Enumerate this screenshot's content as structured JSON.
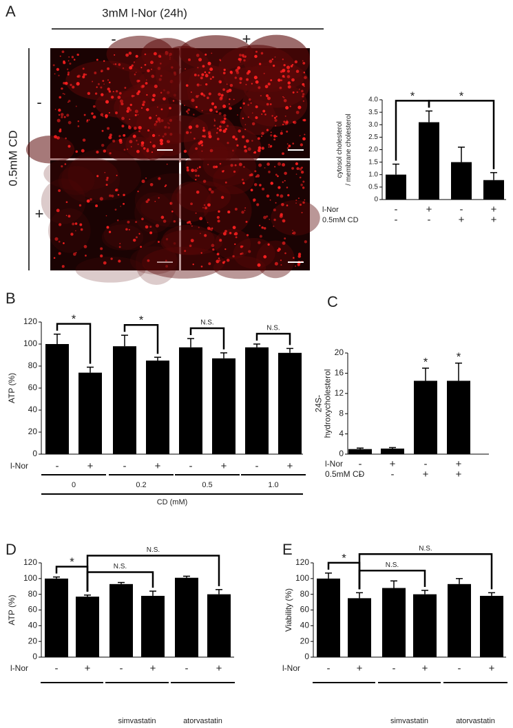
{
  "figure": {
    "header": "3mM l-Nor (24h)",
    "column_signs": [
      "-",
      "+"
    ],
    "row_label": "0.5mM CD",
    "row_signs": [
      "-",
      "+"
    ]
  },
  "chart_data": [
    {
      "type": "bar",
      "panel": "A",
      "ylabel": [
        "cytosol cholesterol",
        "/ membrane cholesterol"
      ],
      "values": [
        1.0,
        3.1,
        1.5,
        0.78
      ],
      "errors": [
        0.42,
        0.45,
        0.6,
        0.3
      ],
      "color": "#000000",
      "ylim": [
        0,
        4
      ],
      "yticks": [
        0,
        0.5,
        {
          "value": 1,
          "label": "1.0"
        },
        1.5,
        {
          "value": 2,
          "label": "2.0"
        },
        2.5,
        {
          "value": 3,
          "label": "3.0"
        },
        3.5,
        {
          "value": 4,
          "label": "4.0"
        }
      ],
      "conditions": [
        {
          "name": "l-Nor",
          "values": [
            "-",
            "+",
            "-",
            "+"
          ]
        },
        {
          "name": "0.5mM CD",
          "values": [
            "-",
            "-",
            "+",
            "+"
          ]
        }
      ],
      "annotations": [
        {
          "text": "*",
          "between": [
            0,
            1
          ]
        },
        {
          "text": "*",
          "between": [
            1,
            3
          ]
        }
      ]
    },
    {
      "type": "bar",
      "panel": "B",
      "ylabel": [
        "ATP (%)"
      ],
      "values": [
        100,
        74,
        98,
        85,
        97,
        87,
        97,
        92
      ],
      "errors": [
        9,
        5,
        10,
        3,
        8,
        5,
        3,
        4
      ],
      "color": "#000000",
      "ylim": [
        0,
        120
      ],
      "yticks": [
        0,
        20,
        40,
        60,
        80,
        100,
        120
      ],
      "conditions": [
        {
          "name": "l-Nor",
          "values": [
            "-",
            "+",
            "-",
            "+",
            "-",
            "+",
            "-",
            "+"
          ]
        }
      ],
      "groups": [
        "0",
        "0.2",
        "0.5",
        "1.0"
      ],
      "xlabel": "CD (mM)",
      "annotations": [
        {
          "text": "*",
          "between": [
            0,
            1
          ]
        },
        {
          "text": "*",
          "between": [
            2,
            3
          ]
        },
        {
          "text": "N.S.",
          "between": [
            4,
            5
          ]
        },
        {
          "text": "N.S.",
          "between": [
            6,
            7
          ]
        }
      ]
    },
    {
      "type": "bar",
      "panel": "C",
      "ylabel": [
        "24S-",
        "hydroxycholesterol"
      ],
      "values": [
        1.0,
        1.1,
        14.5,
        14.5
      ],
      "errors": [
        0.2,
        0.2,
        2.5,
        3.5
      ],
      "color": "#000000",
      "ylim": [
        0,
        20
      ],
      "yticks": [
        0,
        4,
        8,
        12,
        16,
        20
      ],
      "conditions": [
        {
          "name": "l-Nor",
          "values": [
            "-",
            "+",
            "-",
            "+"
          ]
        },
        {
          "name": "0.5mM CD",
          "values": [
            "-",
            "-",
            "+",
            "+"
          ]
        }
      ],
      "annotations": [
        {
          "text": "*",
          "at": 2
        },
        {
          "text": "*",
          "at": 3
        }
      ]
    },
    {
      "type": "bar",
      "panel": "D",
      "ylabel": [
        "ATP (%)"
      ],
      "values": [
        100,
        77,
        93,
        78,
        101,
        80
      ],
      "errors": [
        2,
        2,
        2,
        6,
        2,
        6
      ],
      "color": "#000000",
      "ylim": [
        0,
        120
      ],
      "yticks": [
        0,
        20,
        40,
        60,
        80,
        100,
        120
      ],
      "conditions": [
        {
          "name": "l-Nor",
          "values": [
            "-",
            "+",
            "-",
            "+",
            "-",
            "+"
          ]
        }
      ],
      "groups": [
        null,
        "simvastatin",
        "atorvastatin"
      ],
      "annotations": [
        {
          "text": "*",
          "between": [
            0,
            1
          ]
        },
        {
          "text": "N.S.",
          "between": [
            1,
            3
          ]
        },
        {
          "text": "N.S.",
          "between": [
            1,
            5
          ]
        }
      ]
    },
    {
      "type": "bar",
      "panel": "E",
      "ylabel": [
        "Viability (%)"
      ],
      "values": [
        100,
        75,
        88,
        80,
        93,
        78
      ],
      "errors": [
        7,
        7,
        9,
        5,
        7,
        4
      ],
      "color": "#000000",
      "ylim": [
        0,
        120
      ],
      "yticks": [
        0,
        20,
        40,
        60,
        80,
        100,
        120
      ],
      "conditions": [
        {
          "name": "l-Nor",
          "values": [
            "-",
            "+",
            "-",
            "+",
            "-",
            "+"
          ]
        }
      ],
      "groups": [
        null,
        "simvastatin",
        "atorvastatin"
      ],
      "annotations": [
        {
          "text": "*",
          "between": [
            0,
            1
          ]
        },
        {
          "text": "N.S.",
          "between": [
            1,
            3
          ]
        },
        {
          "text": "N.S.",
          "between": [
            1,
            5
          ]
        }
      ]
    }
  ]
}
